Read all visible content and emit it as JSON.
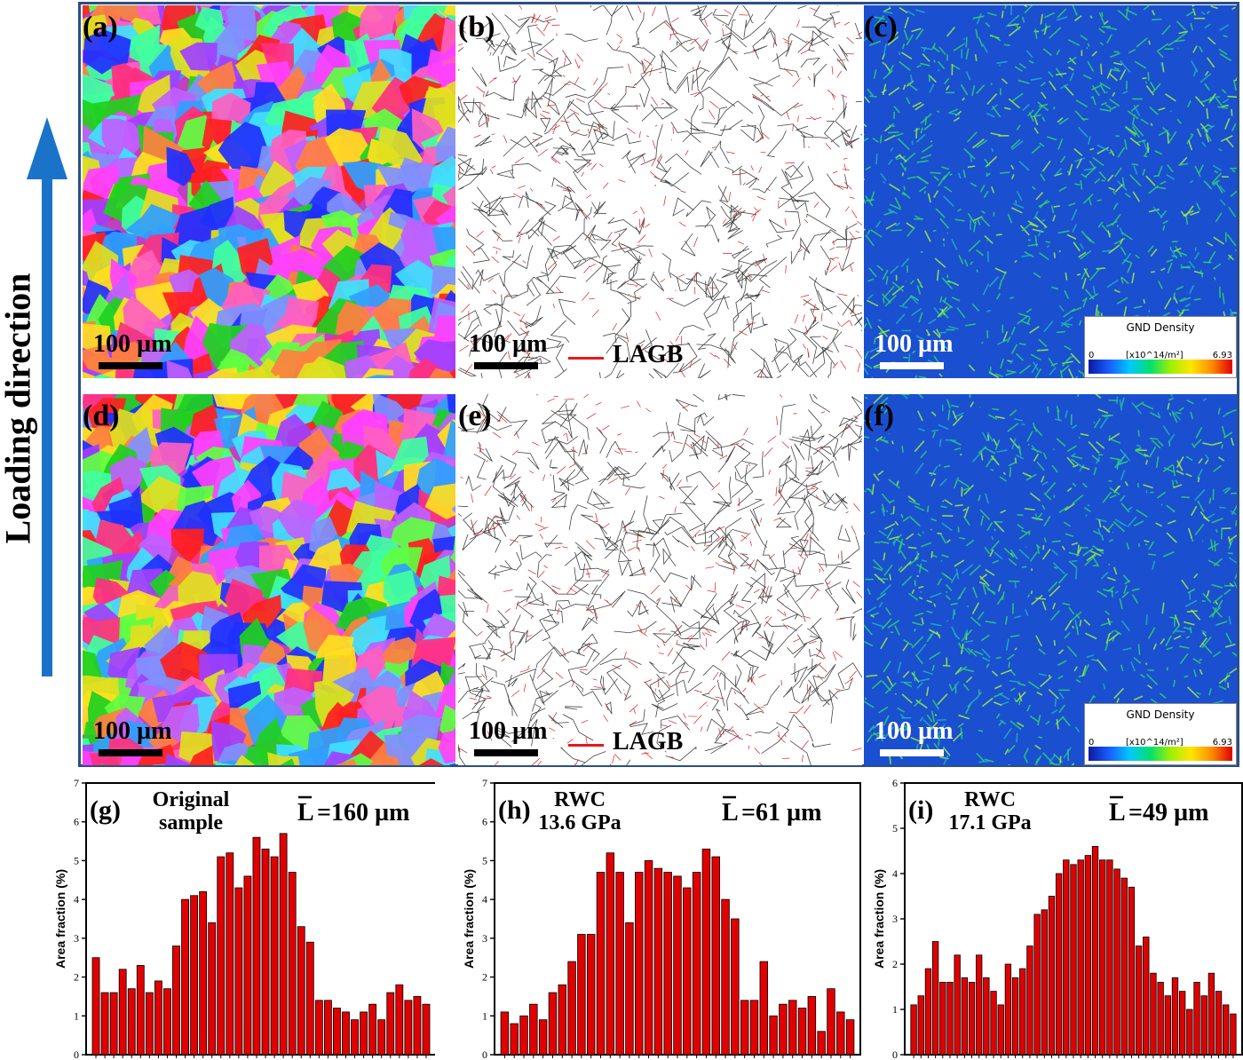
{
  "side_label": "Loading direction",
  "panels": [
    {
      "label": "(a)",
      "scale": "100 µm",
      "kind": "ipf",
      "seed": 11
    },
    {
      "label": "(b)",
      "scale": "100 µm",
      "kind": "gb",
      "legend": "LAGB",
      "seed": 23
    },
    {
      "label": "(c)",
      "scale": "100 µm",
      "kind": "gnd",
      "seed": 37
    },
    {
      "label": "(d)",
      "scale": "100 µm",
      "kind": "ipf",
      "seed": 53
    },
    {
      "label": "(e)",
      "scale": "100 µm",
      "kind": "gb",
      "legend": "LAGB",
      "seed": 71
    },
    {
      "label": "(f)",
      "scale": "100 µm",
      "kind": "gnd",
      "seed": 89
    }
  ],
  "gnd_legend": {
    "title": "GND Density",
    "min": "0",
    "unit": "[x10^14/m²]",
    "max": "6.93"
  },
  "colors": {
    "frame": "#2a4f86",
    "arrow": "#1a73c8",
    "bar": "#e00000",
    "lagb": "#e31a1c"
  },
  "chart_data": [
    {
      "type": "bar",
      "label": "(g)",
      "title_lines": [
        "Original",
        "sample"
      ],
      "mean": "=160 µm",
      "ylabel": "Area fraction (%)",
      "ylim": [
        0,
        7
      ],
      "yticks": [
        0,
        1,
        2,
        3,
        4,
        5,
        6,
        7
      ],
      "values": [
        2.5,
        1.6,
        1.6,
        2.2,
        1.7,
        2.3,
        1.6,
        1.9,
        1.7,
        2.8,
        4.0,
        4.1,
        4.2,
        3.4,
        5.1,
        5.2,
        4.3,
        4.6,
        5.6,
        5.3,
        5.1,
        5.7,
        4.7,
        3.3,
        2.9,
        1.4,
        1.4,
        1.2,
        1.1,
        0.9,
        1.1,
        1.3,
        0.9,
        1.6,
        1.8,
        1.4,
        1.5,
        1.3
      ]
    },
    {
      "type": "bar",
      "label": "(h)",
      "title_lines": [
        "RWC",
        "13.6 GPa"
      ],
      "mean": "=61 µm",
      "ylabel": "Area fraction (%)",
      "ylim": [
        0,
        7
      ],
      "yticks": [
        0,
        1,
        2,
        3,
        4,
        5,
        6,
        7
      ],
      "values": [
        1.1,
        0.8,
        1.0,
        1.3,
        0.9,
        1.6,
        1.8,
        2.4,
        3.1,
        3.1,
        4.7,
        5.2,
        4.7,
        3.4,
        4.7,
        5.0,
        4.8,
        4.7,
        4.6,
        4.3,
        4.7,
        5.3,
        5.1,
        4.0,
        3.5,
        1.4,
        1.4,
        2.4,
        1.0,
        1.3,
        1.4,
        1.2,
        1.5,
        0.6,
        1.7,
        1.1,
        0.9
      ]
    },
    {
      "type": "bar",
      "label": "(i)",
      "title_lines": [
        "RWC",
        "17.1 GPa"
      ],
      "mean": "=49 µm",
      "ylabel": "Area fraction (%)",
      "ylim": [
        0,
        6
      ],
      "yticks": [
        0,
        1,
        2,
        3,
        4,
        5,
        6
      ],
      "values": [
        1.1,
        1.3,
        1.9,
        2.5,
        1.6,
        1.6,
        2.2,
        1.7,
        1.6,
        2.2,
        1.7,
        1.4,
        1.1,
        2.0,
        1.7,
        1.9,
        2.4,
        3.1,
        3.2,
        3.5,
        4.0,
        4.3,
        4.2,
        4.3,
        4.4,
        4.6,
        4.3,
        4.3,
        4.1,
        3.9,
        3.7,
        2.4,
        2.6,
        1.8,
        1.6,
        1.3,
        1.7,
        1.4,
        1.0,
        1.6,
        1.3,
        1.8,
        1.4,
        1.1,
        0.9
      ]
    }
  ]
}
